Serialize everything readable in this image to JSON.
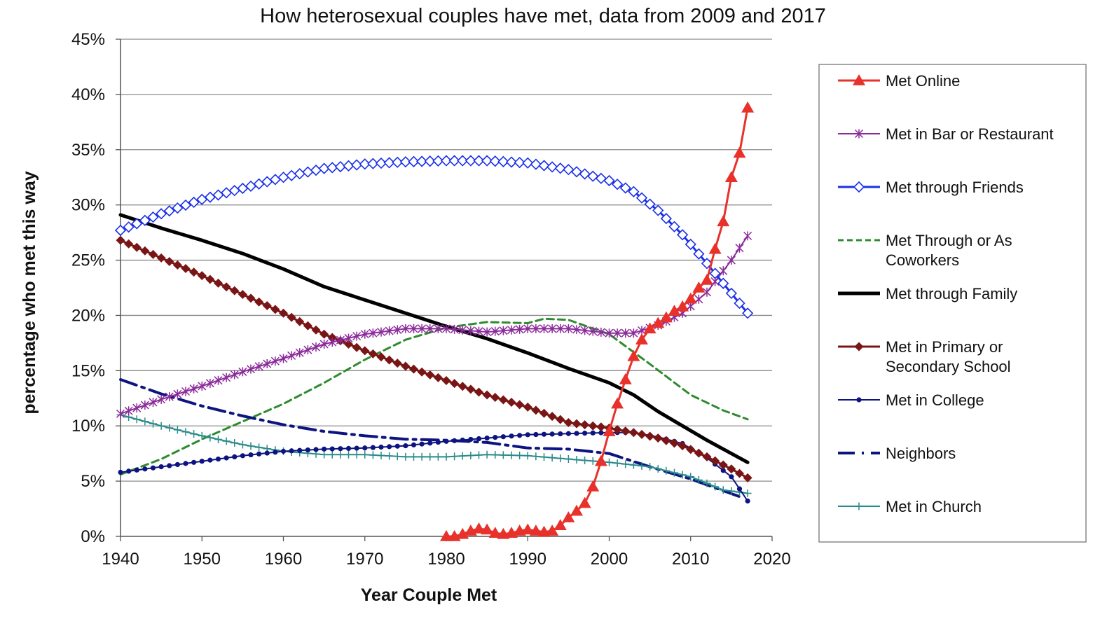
{
  "chart_data": {
    "type": "line",
    "title": "How heterosexual couples have met, data from 2009 and 2017",
    "xlabel": "Year Couple Met",
    "ylabel": "percentage who met this way",
    "xlim": [
      1940,
      2020
    ],
    "ylim": [
      0,
      45
    ],
    "x_ticks": [
      "1940",
      "1950",
      "1960",
      "1970",
      "1980",
      "1990",
      "2000",
      "2010",
      "2020"
    ],
    "y_ticks": [
      "0%",
      "5%",
      "10%",
      "15%",
      "20%",
      "25%",
      "30%",
      "35%",
      "40%",
      "45%"
    ],
    "grid": "horizontal",
    "legend_position": "right",
    "series": [
      {
        "name": "Met Online",
        "color": "#e8312a",
        "dash": "",
        "marker": "triangle",
        "width": 3,
        "x": [
          1980,
          1981,
          1982,
          1983,
          1984,
          1985,
          1986,
          1987,
          1988,
          1989,
          1990,
          1991,
          1992,
          1993,
          1994,
          1995,
          1996,
          1997,
          1998,
          1999,
          2000,
          2001,
          2002,
          2003,
          2004,
          2005,
          2006,
          2007,
          2008,
          2009,
          2010,
          2011,
          2012,
          2013,
          2014,
          2015,
          2016,
          2017
        ],
        "values": [
          0,
          0,
          0.2,
          0.5,
          0.7,
          0.6,
          0.3,
          0.2,
          0.3,
          0.5,
          0.6,
          0.5,
          0.4,
          0.5,
          1.0,
          1.7,
          2.3,
          3.0,
          4.5,
          6.8,
          9.5,
          12.0,
          14.2,
          16.3,
          17.8,
          18.8,
          19.3,
          19.8,
          20.4,
          20.8,
          21.5,
          22.5,
          23.2,
          26.0,
          28.5,
          32.5,
          34.7,
          38.8
        ]
      },
      {
        "name": "Met in Bar or Restaurant",
        "color": "#8b2a9a",
        "dash": "",
        "marker": "star",
        "width": 2,
        "x": [
          1940,
          1945,
          1950,
          1955,
          1960,
          1965,
          1970,
          1975,
          1980,
          1985,
          1990,
          1995,
          2000,
          2003,
          2006,
          2009,
          2012,
          2015,
          2017
        ],
        "values": [
          11.1,
          12.4,
          13.6,
          14.9,
          16.1,
          17.4,
          18.3,
          18.8,
          18.8,
          18.5,
          18.8,
          18.8,
          18.4,
          18.4,
          19.1,
          20.2,
          22.1,
          25.0,
          27.2
        ]
      },
      {
        "name": "Met through Friends",
        "color": "#1a30e8",
        "dash": "",
        "marker": "diamond-open",
        "width": 3,
        "x": [
          1940,
          1945,
          1950,
          1955,
          1960,
          1965,
          1970,
          1975,
          1980,
          1985,
          1990,
          1995,
          2000,
          2003,
          2006,
          2009,
          2012,
          2015,
          2017
        ],
        "values": [
          27.7,
          29.2,
          30.5,
          31.5,
          32.5,
          33.3,
          33.7,
          33.9,
          34.0,
          34.0,
          33.8,
          33.2,
          32.2,
          31.2,
          29.5,
          27.3,
          24.7,
          22.0,
          20.2
        ]
      },
      {
        "name": "Met Through or As Coworkers",
        "color": "#2e8b2e",
        "dash": "10 6",
        "marker": "none",
        "width": 3,
        "x": [
          1940,
          1945,
          1950,
          1955,
          1960,
          1965,
          1970,
          1975,
          1980,
          1985,
          1990,
          1992,
          1995,
          2000,
          2005,
          2010,
          2014,
          2017
        ],
        "values": [
          5.6,
          7.0,
          8.8,
          10.4,
          12.0,
          13.9,
          16.0,
          17.8,
          18.9,
          19.4,
          19.3,
          19.7,
          19.6,
          18.3,
          15.6,
          12.8,
          11.4,
          10.6
        ]
      },
      {
        "name": "Met through Family",
        "color": "#000000",
        "dash": "",
        "marker": "none",
        "width": 5,
        "x": [
          1940,
          1945,
          1950,
          1955,
          1960,
          1965,
          1970,
          1975,
          1980,
          1985,
          1990,
          1995,
          2000,
          2003,
          2006,
          2009,
          2012,
          2015,
          2017
        ],
        "values": [
          29.1,
          27.9,
          26.8,
          25.6,
          24.2,
          22.6,
          21.4,
          20.2,
          19.0,
          17.9,
          16.6,
          15.2,
          13.9,
          12.8,
          11.3,
          10.0,
          8.7,
          7.5,
          6.7
        ]
      },
      {
        "name": "Met in Primary or Secondary School",
        "color": "#7a1515",
        "dash": "",
        "marker": "diamond",
        "width": 3,
        "x": [
          1940,
          1945,
          1950,
          1955,
          1960,
          1965,
          1970,
          1975,
          1980,
          1985,
          1990,
          1995,
          2000,
          2003,
          2006,
          2009,
          2012,
          2015,
          2017
        ],
        "values": [
          26.8,
          25.2,
          23.6,
          21.9,
          20.2,
          18.3,
          16.8,
          15.4,
          14.1,
          12.8,
          11.7,
          10.3,
          9.8,
          9.4,
          8.9,
          8.2,
          7.2,
          6.1,
          5.3
        ]
      },
      {
        "name": "Met in College",
        "color": "#0d1480",
        "dash": "",
        "marker": "dot",
        "width": 2,
        "x": [
          1940,
          1945,
          1950,
          1955,
          1960,
          1965,
          1970,
          1975,
          1980,
          1985,
          1990,
          1995,
          2000,
          2003,
          2006,
          2009,
          2012,
          2015,
          2017
        ],
        "values": [
          5.8,
          6.3,
          6.8,
          7.3,
          7.7,
          7.9,
          8.0,
          8.2,
          8.6,
          8.9,
          9.2,
          9.3,
          9.4,
          9.4,
          9.0,
          8.4,
          7.1,
          5.4,
          3.2
        ]
      },
      {
        "name": "Neighbors",
        "color": "#0d1480",
        "dash": "24 8 4 8",
        "marker": "none",
        "width": 4,
        "x": [
          1940,
          1945,
          1950,
          1955,
          1960,
          1965,
          1970,
          1975,
          1980,
          1985,
          1990,
          1995,
          2000,
          2005,
          2010,
          2016
        ],
        "values": [
          14.2,
          12.9,
          11.8,
          10.9,
          10.1,
          9.5,
          9.1,
          8.8,
          8.7,
          8.5,
          8.0,
          7.9,
          7.5,
          6.3,
          5.2,
          3.6
        ]
      },
      {
        "name": "Met in Church",
        "color": "#2a8a8a",
        "dash": "",
        "marker": "plus",
        "width": 2,
        "x": [
          1940,
          1945,
          1950,
          1955,
          1960,
          1965,
          1970,
          1975,
          1980,
          1985,
          1990,
          1995,
          2000,
          2005,
          2010,
          2014,
          2017
        ],
        "values": [
          11.0,
          10.0,
          9.1,
          8.3,
          7.7,
          7.4,
          7.4,
          7.2,
          7.2,
          7.4,
          7.3,
          7.0,
          6.7,
          6.3,
          5.4,
          4.2,
          3.9
        ]
      }
    ]
  }
}
